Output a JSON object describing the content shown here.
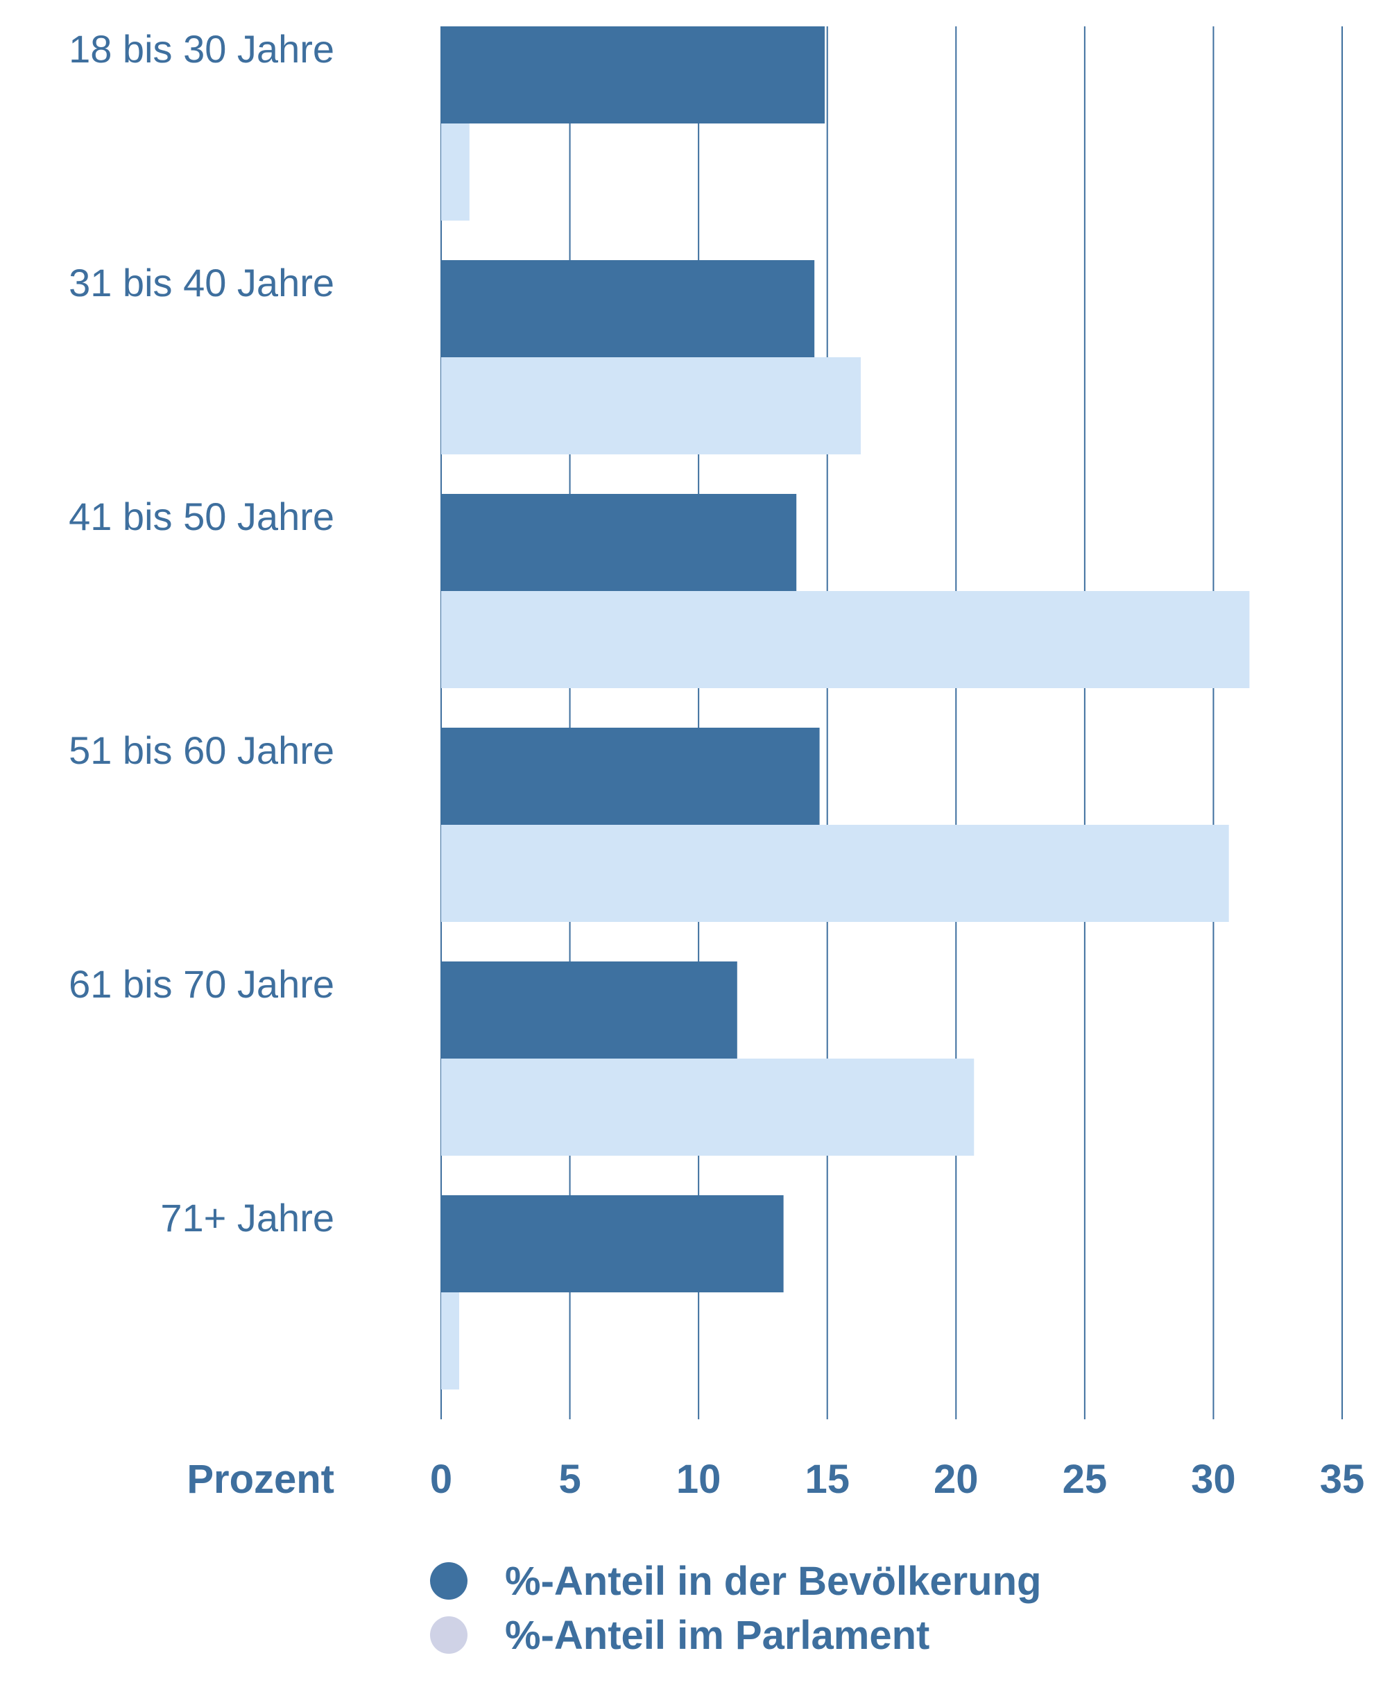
{
  "chart_data": {
    "type": "bar",
    "orientation": "horizontal",
    "categories": [
      "18 bis 30 Jahre",
      "31 bis 40 Jahre",
      "41 bis 50 Jahre",
      "51 bis 60 Jahre",
      "61 bis 70 Jahre",
      "71+ Jahre"
    ],
    "series": [
      {
        "name": "%-Anteil in der Bevölkerung",
        "values": [
          14.9,
          14.5,
          13.8,
          14.7,
          11.5,
          13.3
        ],
        "color": "#3e71a0"
      },
      {
        "name": "%-Anteil im Parlament",
        "values": [
          1.1,
          16.3,
          31.4,
          30.6,
          20.7,
          0.7
        ],
        "color": "#d1e4f7"
      }
    ],
    "xlabel": "Prozent",
    "xlim": [
      0,
      35
    ],
    "xticks": [
      "0",
      "5",
      "10",
      "15",
      "20",
      "25",
      "30",
      "35"
    ],
    "grid": "vertical",
    "legend_position": "bottom",
    "legend_colors": [
      "#3e71a0",
      "#cfd2e6"
    ],
    "text_color": "#3e6f9e",
    "grid_color": "#3e6f9e"
  }
}
